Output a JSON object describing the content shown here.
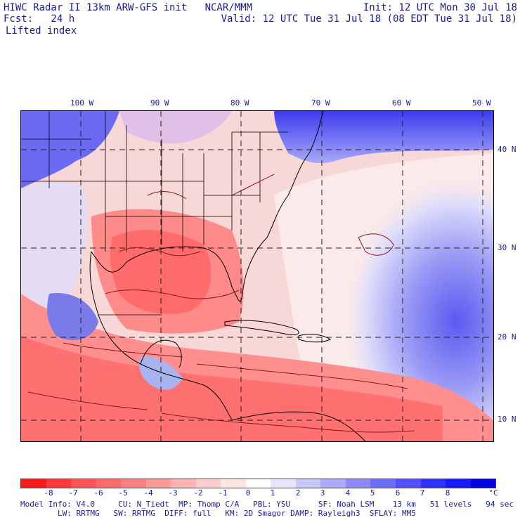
{
  "header": {
    "line1_left": "HIWC Radar II 13km ARW-GFS init   NCAR/MMM",
    "line1_right": "Init: 12 UTC Mon 30 Jul 18",
    "line2_left": "Fcst:   24 h",
    "line2_right": "Valid: 12 UTC Tue 31 Jul 18 (08 EDT Tue 31 Jul 18)",
    "field": "Lifted index"
  },
  "map": {
    "lon_labels": [
      "100 W",
      "90 W",
      "80 W",
      "70 W",
      "60 W",
      "50 W"
    ],
    "lat_labels": [
      "40 N",
      "30 N",
      "20 N",
      "10 N"
    ]
  },
  "colorbar": {
    "ticks": [
      "-8",
      "-7",
      "-6",
      "-5",
      "-4",
      "-3",
      "-2",
      "-1",
      "0",
      "1",
      "2",
      "3",
      "4",
      "5",
      "6",
      "7",
      "8"
    ],
    "unit": "°C",
    "colors": [
      "#ff1a1a",
      "#ff3a3a",
      "#ff5555",
      "#ff6b6b",
      "#ff8080",
      "#ff9a9a",
      "#ffb3b3",
      "#ffcdcd",
      "#ffe6e6",
      "#ffffff",
      "#e6e6ff",
      "#c8c8ff",
      "#aaaaff",
      "#8c8cff",
      "#6e6eff",
      "#5050ff",
      "#3232ff",
      "#1a1aff",
      "#0000e6"
    ]
  },
  "footer": {
    "line1": "Model Info: V4.0     CU: N_Tiedt  MP: Thomp C/A   PBL: YSU      SF: Noah LSM    13 km   51 levels   94 sec",
    "line2": "        LW: RRTMG   SW: RRTMG  DIFF: full   KM: 2D Smagor DAMP: Rayleigh3  SFLAY: MM5"
  }
}
